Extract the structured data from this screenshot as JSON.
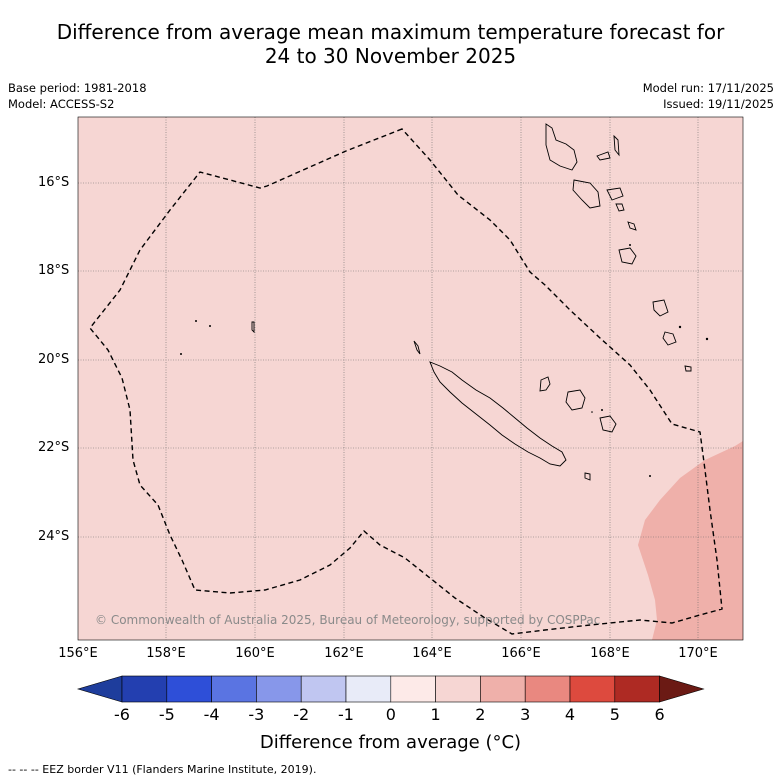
{
  "header": {
    "title_line1": "Difference from average mean maximum temperature forecast for",
    "title_line2": "24 to 30 November 2025",
    "base_period": "Base period: 1981-2018",
    "model": "Model: ACCESS-S2",
    "model_run": "Model run: 17/11/2025",
    "issued": "Issued: 19/11/2025"
  },
  "map": {
    "lat_labels": [
      "16°S",
      "18°S",
      "20°S",
      "22°S",
      "24°S"
    ],
    "lon_labels": [
      "156°E",
      "158°E",
      "160°E",
      "162°E",
      "164°E",
      "166°E",
      "168°E",
      "170°E"
    ],
    "copyright": "© Commonwealth of Australia 2025, Bureau of Meteorology, supported by COSPPac",
    "base_fill": "#f6d6d3",
    "warm_fill": "#efb0aa"
  },
  "colorbar": {
    "ticks": [
      "-6",
      "-5",
      "-4",
      "-3",
      "-2",
      "-1",
      "0",
      "1",
      "2",
      "3",
      "4",
      "5",
      "6"
    ],
    "colors": [
      "#1e3d9c",
      "#233fb0",
      "#2e4fd8",
      "#5a74e2",
      "#8797ea",
      "#c0c6f1",
      "#e8ebf8",
      "#fdeae8",
      "#f6d6d3",
      "#efb0aa",
      "#e98880",
      "#dd4a3e",
      "#ae2a23",
      "#6b1a14"
    ],
    "title": "Difference from average (°C)"
  },
  "footer": {
    "legend": "--  --  -- EEZ border V11 (Flanders Marine Institute, 2019)."
  }
}
